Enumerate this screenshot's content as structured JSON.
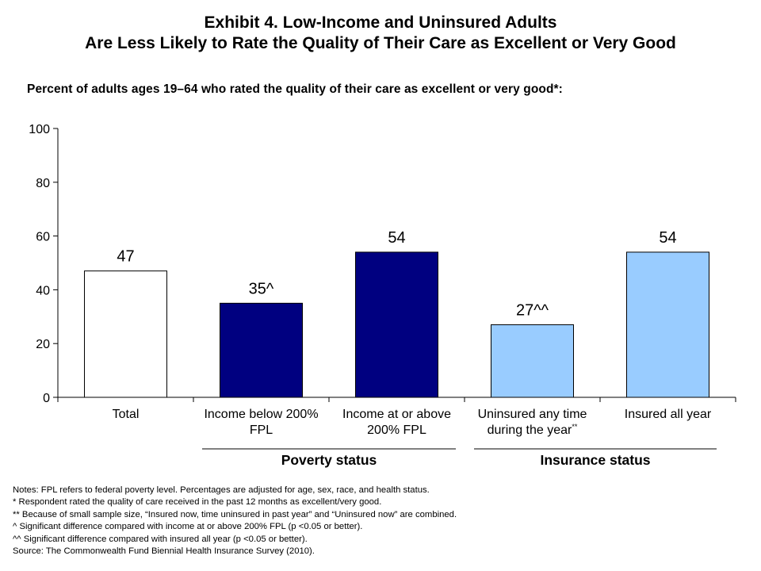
{
  "title_line1": "Exhibit 4. Low-Income and Uninsured Adults",
  "title_line2": "Are Less Likely to Rate the Quality of Their Care as Excellent or Very Good",
  "subtitle": "Percent of adults ages 19–64 who rated the quality of their care as excellent or very good*:",
  "chart_data": {
    "type": "bar",
    "categories": [
      [
        "Total"
      ],
      [
        "Income below 200%",
        "FPL"
      ],
      [
        "Income at or above",
        "200% FPL"
      ],
      [
        "Uninsured any time",
        "during the year"
      ],
      [
        "Insured all year"
      ]
    ],
    "category_markers": [
      "",
      "",
      "",
      "**",
      ""
    ],
    "values": [
      47,
      35,
      54,
      27,
      54
    ],
    "data_labels": [
      "47",
      "35^",
      "54",
      "27^^",
      "54"
    ],
    "bar_colors": [
      "#ffffff",
      "#000080",
      "#000080",
      "#99ccff",
      "#99ccff"
    ],
    "yticks": [
      0,
      20,
      40,
      60,
      80,
      100
    ],
    "ylim": [
      0,
      100
    ],
    "groups": [
      {
        "label": "Poverty status",
        "categories": [
          1,
          2
        ]
      },
      {
        "label": "Insurance status",
        "categories": [
          3,
          4
        ]
      }
    ]
  },
  "notes": [
    "Notes: FPL refers to federal poverty level. Percentages are adjusted for age, sex, race, and health status.",
    "* Respondent rated the quality of care received in the past 12 months as excellent/very good.",
    "** Because of small sample size, “Insured now, time uninsured in past year” and “Uninsured now” are combined.",
    "^ Significant difference compared with income at or above 200% FPL (p <0.05 or better).",
    "^^ Significant difference compared with insured all year (p <0.05 or better).",
    "Source: The Commonwealth Fund Biennial Health Insurance Survey (2010)."
  ]
}
